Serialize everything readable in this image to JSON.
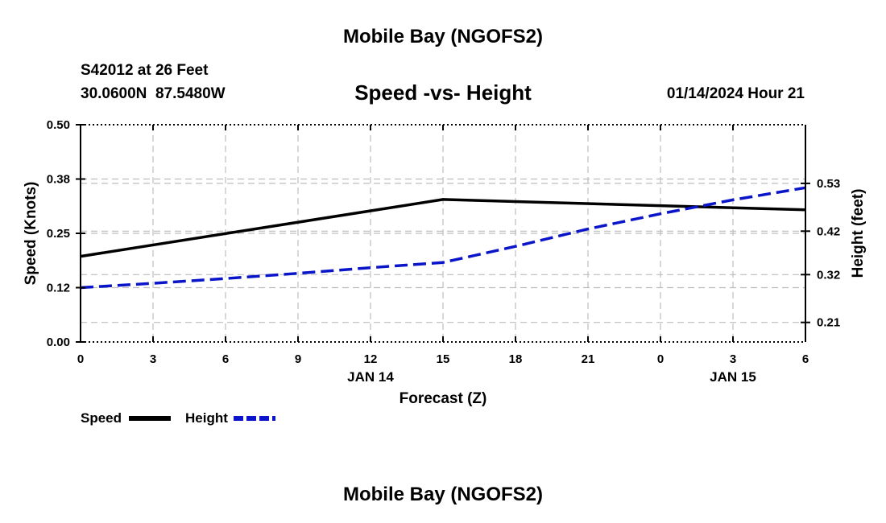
{
  "header": {
    "title": "Mobile Bay (NGOFS2)",
    "station": "S42012 at 26 Feet",
    "coords": "30.0600N  87.5480W",
    "datetime": "01/14/2024 Hour 21"
  },
  "footer": {
    "title": "Mobile Bay (NGOFS2)"
  },
  "chart_data": {
    "type": "line",
    "title": "Speed -vs- Height",
    "xlabel": "Forecast (Z)",
    "ylabel": "Speed (Knots)",
    "y2label": "Height (feet)",
    "x_hours": [
      0,
      3,
      6,
      9,
      12,
      15,
      18,
      21,
      24,
      27,
      30
    ],
    "x_tick_labels": [
      "0",
      "3",
      "6",
      "9",
      "12",
      "15",
      "18",
      "21",
      "0",
      "3",
      "6"
    ],
    "date_labels": [
      {
        "label": "JAN 14",
        "hour": 12
      },
      {
        "label": "JAN 15",
        "hour": 27
      }
    ],
    "ylim": [
      0,
      0.5
    ],
    "y_ticks": [
      0.0,
      0.125,
      0.25,
      0.375,
      0.5
    ],
    "y_tick_labels": [
      "0.00",
      "0.12",
      "0.25",
      "0.38",
      "0.50"
    ],
    "y2lim": [
      0.165,
      0.665
    ],
    "y2_ticks": [
      0.21,
      0.32,
      0.42,
      0.53
    ],
    "y2_tick_labels": [
      "0.21",
      "0.32",
      "0.42",
      "0.53"
    ],
    "grid": true,
    "legend_position": "bottom-left",
    "series": [
      {
        "name": "Speed",
        "axis": "left",
        "color": "#000000",
        "dash": "solid",
        "x": [
          0,
          15,
          30
        ],
        "values": [
          0.197,
          0.328,
          0.304
        ]
      },
      {
        "name": "Height",
        "axis": "right",
        "color": "#0a14c8",
        "dash": "dashed",
        "x": [
          0,
          3,
          6,
          9,
          12,
          15,
          18,
          21,
          24,
          27,
          30
        ],
        "values": [
          0.29,
          0.3,
          0.311,
          0.323,
          0.336,
          0.348,
          0.385,
          0.425,
          0.46,
          0.492,
          0.52
        ]
      }
    ]
  }
}
